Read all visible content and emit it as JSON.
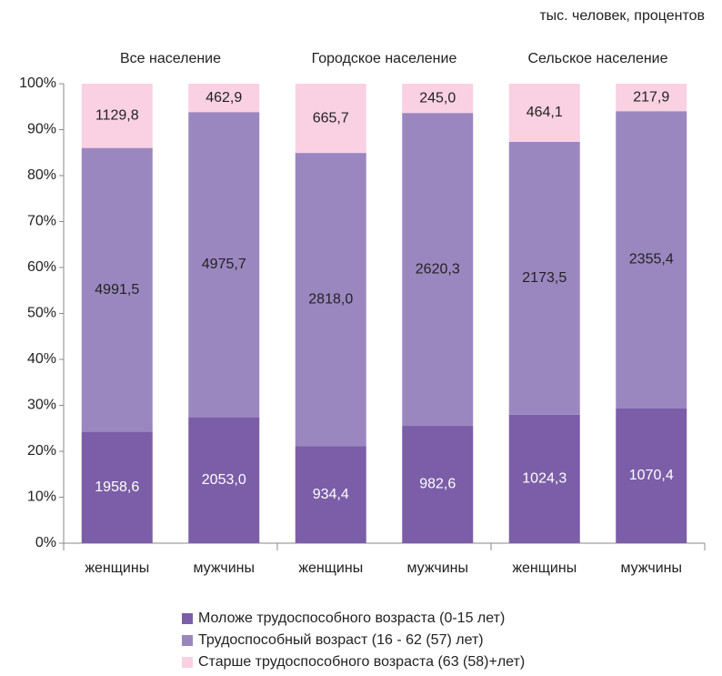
{
  "chart_data": {
    "type": "stacked_percent",
    "subtitle": "тыс. человек, процентов",
    "groups": [
      "Все население",
      "Городское население",
      "Сельское население"
    ],
    "categories": [
      "женщины",
      "мужчины",
      "женщины",
      "мужчины",
      "женщины",
      "мужчины"
    ],
    "series": [
      {
        "name": "Моложе трудоспособного возраста (0-15 лет)",
        "color": "#7b5ea7",
        "values": [
          1958.6,
          2053.0,
          934.4,
          982.6,
          1024.3,
          1070.4
        ],
        "value_labels": [
          "1958,6",
          "2053,0",
          "934,4",
          "982,6",
          "1024,3",
          "1070,4"
        ]
      },
      {
        "name": "Трудоспособный возраст (16 - 62 (57) лет)",
        "color": "#9b87c0",
        "values": [
          4991.5,
          4975.7,
          2818.0,
          2620.3,
          2173.5,
          2355.4
        ],
        "value_labels": [
          "4991,5",
          "4975,7",
          "2818,0",
          "2620,3",
          "2173,5",
          "2355,4"
        ]
      },
      {
        "name": "Старше трудоспособного возраста (63 (58)+лет)",
        "color": "#f9d1e3",
        "values": [
          1129.8,
          462.9,
          665.7,
          245.0,
          464.1,
          217.9
        ],
        "value_labels": [
          "1129,8",
          "462,9",
          "665,7",
          "245,0",
          "464,1",
          "217,9"
        ]
      }
    ],
    "ylim": [
      0,
      100
    ],
    "yticks": [
      {
        "value": 0,
        "label": "0%"
      },
      {
        "value": 10,
        "label": "10%"
      },
      {
        "value": 20,
        "label": "20%"
      },
      {
        "value": 30,
        "label": "30%"
      },
      {
        "value": 40,
        "label": "40%"
      },
      {
        "value": 50,
        "label": "50%"
      },
      {
        "value": 60,
        "label": "60%"
      },
      {
        "value": 70,
        "label": "70%"
      },
      {
        "value": 80,
        "label": "80%"
      },
      {
        "value": 90,
        "label": "90%"
      },
      {
        "value": 100,
        "label": "100%"
      }
    ]
  }
}
